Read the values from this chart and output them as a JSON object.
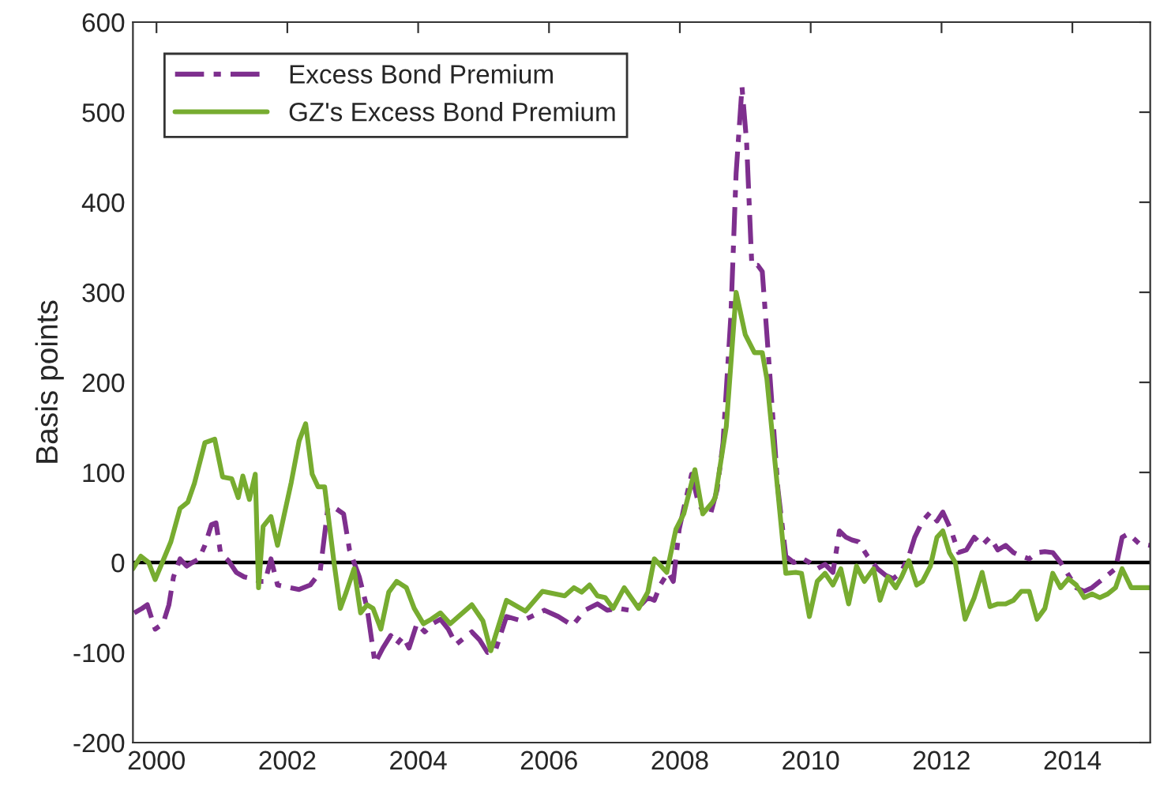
{
  "chart_data": {
    "type": "line",
    "ylabel": "Basis points",
    "xlim": [
      1999.64,
      2015.19
    ],
    "ylim": [
      -200,
      600
    ],
    "xticks": [
      2000,
      2002,
      2004,
      2006,
      2008,
      2010,
      2012,
      2014
    ],
    "yticks": [
      -200,
      -100,
      0,
      100,
      200,
      300,
      400,
      500,
      600
    ],
    "legend": "top left",
    "grid": false,
    "marker": "none",
    "ref_lines": [
      {
        "axis": "y",
        "value": 0,
        "color": "#000000"
      }
    ],
    "series": [
      {
        "name": "Excess Bond Premium",
        "color": "#7e2f8e",
        "line_style": "dashed",
        "x": [
          1999.66,
          1999.78,
          1999.86,
          1999.98,
          2000.1,
          2000.19,
          2000.26,
          2000.36,
          2000.46,
          2000.55,
          2000.65,
          2000.74,
          2000.84,
          2000.91,
          2000.98,
          2001.1,
          2001.22,
          2001.34,
          2001.46,
          2001.58,
          2001.66,
          2001.75,
          2001.85,
          2002.18,
          2002.35,
          2002.5,
          2002.62,
          2002.74,
          2002.86,
          2002.95,
          2003.1,
          2003.22,
          2003.34,
          2003.46,
          2003.58,
          2003.67,
          2003.77,
          2003.86,
          2003.98,
          2004.1,
          2004.22,
          2004.34,
          2004.46,
          2004.58,
          2004.82,
          2004.94,
          2005.06,
          2005.18,
          2005.35,
          2005.59,
          2005.93,
          2006.14,
          2006.36,
          2006.55,
          2006.74,
          2006.89,
          2007.06,
          2007.22,
          2007.42,
          2007.51,
          2007.61,
          2007.7,
          2007.82,
          2007.9,
          2007.99,
          2008.06,
          2008.18,
          2008.28,
          2008.38,
          2008.47,
          2008.57,
          2008.66,
          2008.78,
          2008.86,
          2008.95,
          2009.02,
          2009.1,
          2009.19,
          2009.26,
          2009.38,
          2009.5,
          2009.62,
          2009.74,
          2009.86,
          2009.98,
          2010.1,
          2010.22,
          2010.34,
          2010.44,
          2010.54,
          2010.63,
          2010.73,
          2010.87,
          2011.02,
          2011.14,
          2011.26,
          2011.38,
          2011.5,
          2011.59,
          2011.71,
          2011.83,
          2011.93,
          2012.02,
          2012.14,
          2012.26,
          2012.38,
          2012.5,
          2012.62,
          2012.74,
          2012.86,
          2012.98,
          2013.1,
          2013.22,
          2013.34,
          2013.46,
          2013.58,
          2013.7,
          2013.82,
          2013.94,
          2014.06,
          2014.18,
          2014.3,
          2014.42,
          2014.54,
          2014.66,
          2014.76,
          2014.86,
          2015.02,
          2015.19
        ],
        "values": [
          -56,
          -51,
          -47,
          -74,
          -68,
          -47,
          -16,
          4,
          -4,
          0,
          4,
          19,
          42,
          44,
          10,
          2,
          -11,
          -16,
          -18,
          -21,
          -21,
          4,
          -25,
          -30,
          -25,
          -11,
          61,
          60,
          54,
          14,
          -16,
          -51,
          -112,
          -95,
          -81,
          -91,
          -82,
          -95,
          -68,
          -77,
          -68,
          -63,
          -74,
          -91,
          -77,
          -86,
          -100,
          -98,
          -60,
          -65,
          -53,
          -60,
          -70,
          -53,
          -46,
          -53,
          -51,
          -53,
          -46,
          -39,
          -42,
          -25,
          -11,
          -21,
          37,
          60,
          98,
          67,
          53,
          54,
          81,
          133,
          274,
          432,
          528,
          467,
          330,
          330,
          323,
          204,
          81,
          7,
          0,
          5,
          0,
          -7,
          -2,
          -11,
          35,
          28,
          25,
          23,
          7,
          -7,
          -14,
          -18,
          -11,
          7,
          28,
          46,
          56,
          46,
          56,
          37,
          11,
          14,
          28,
          19,
          28,
          14,
          19,
          11,
          7,
          4,
          11,
          12,
          11,
          0,
          -14,
          -28,
          -32,
          -28,
          -21,
          -14,
          -7,
          28,
          32,
          21,
          19
        ]
      },
      {
        "name": "GZ's Excess Bond Premium",
        "color": "#77ac30",
        "line_style": "solid",
        "x": [
          1999.64,
          1999.76,
          1999.88,
          1999.98,
          2000.1,
          2000.22,
          2000.36,
          2000.48,
          2000.58,
          2000.74,
          2000.89,
          2001.01,
          2001.15,
          2001.25,
          2001.32,
          2001.42,
          2001.51,
          2001.56,
          2001.63,
          2001.75,
          2001.85,
          2001.94,
          2002.06,
          2002.18,
          2002.28,
          2002.38,
          2002.47,
          2002.57,
          2002.71,
          2002.81,
          2002.9,
          2003.02,
          2003.12,
          2003.22,
          2003.31,
          2003.43,
          2003.55,
          2003.67,
          2003.82,
          2003.94,
          2004.08,
          2004.2,
          2004.34,
          2004.49,
          2004.82,
          2004.99,
          2005.11,
          2005.35,
          2005.64,
          2005.9,
          2006.24,
          2006.38,
          2006.5,
          2006.62,
          2006.74,
          2006.86,
          2006.98,
          2007.15,
          2007.37,
          2007.51,
          2007.61,
          2007.8,
          2007.94,
          2008.06,
          2008.23,
          2008.35,
          2008.5,
          2008.54,
          2008.71,
          2008.86,
          2009.0,
          2009.14,
          2009.26,
          2009.33,
          2009.62,
          2009.77,
          2009.86,
          2009.98,
          2010.1,
          2010.22,
          2010.34,
          2010.46,
          2010.58,
          2010.7,
          2010.82,
          2010.96,
          2011.06,
          2011.18,
          2011.3,
          2011.39,
          2011.5,
          2011.62,
          2011.71,
          2011.83,
          2011.93,
          2012.02,
          2012.12,
          2012.21,
          2012.36,
          2012.5,
          2012.62,
          2012.74,
          2012.86,
          2012.98,
          2013.1,
          2013.22,
          2013.34,
          2013.46,
          2013.58,
          2013.7,
          2013.82,
          2013.94,
          2014.06,
          2014.18,
          2014.3,
          2014.42,
          2014.54,
          2014.66,
          2014.76,
          2014.9,
          2015.19
        ],
        "values": [
          -7,
          7,
          0,
          -19,
          2,
          23,
          60,
          67,
          88,
          133,
          137,
          95,
          93,
          72,
          96,
          70,
          98,
          -28,
          40,
          51,
          19,
          49,
          89,
          135,
          154,
          98,
          84,
          84,
          2,
          -51,
          -33,
          -7,
          -56,
          -47,
          -51,
          -74,
          -33,
          -21,
          -28,
          -51,
          -68,
          -63,
          -56,
          -68,
          -47,
          -65,
          -98,
          -42,
          -54,
          -32,
          -37,
          -28,
          -33,
          -25,
          -37,
          -39,
          -51,
          -28,
          -51,
          -33,
          4,
          -11,
          37,
          54,
          103,
          54,
          67,
          72,
          151,
          300,
          253,
          233,
          233,
          204,
          -12,
          -11,
          -12,
          -60,
          -21,
          -12,
          -25,
          -7,
          -46,
          -4,
          -21,
          -7,
          -42,
          -16,
          -28,
          -16,
          2,
          -25,
          -21,
          -4,
          28,
          35,
          11,
          0,
          -63,
          -39,
          -11,
          -49,
          -46,
          -46,
          -42,
          -32,
          -32,
          -63,
          -51,
          -12,
          -28,
          -18,
          -25,
          -39,
          -35,
          -39,
          -35,
          -28,
          -7,
          -28,
          -28
        ]
      }
    ]
  }
}
